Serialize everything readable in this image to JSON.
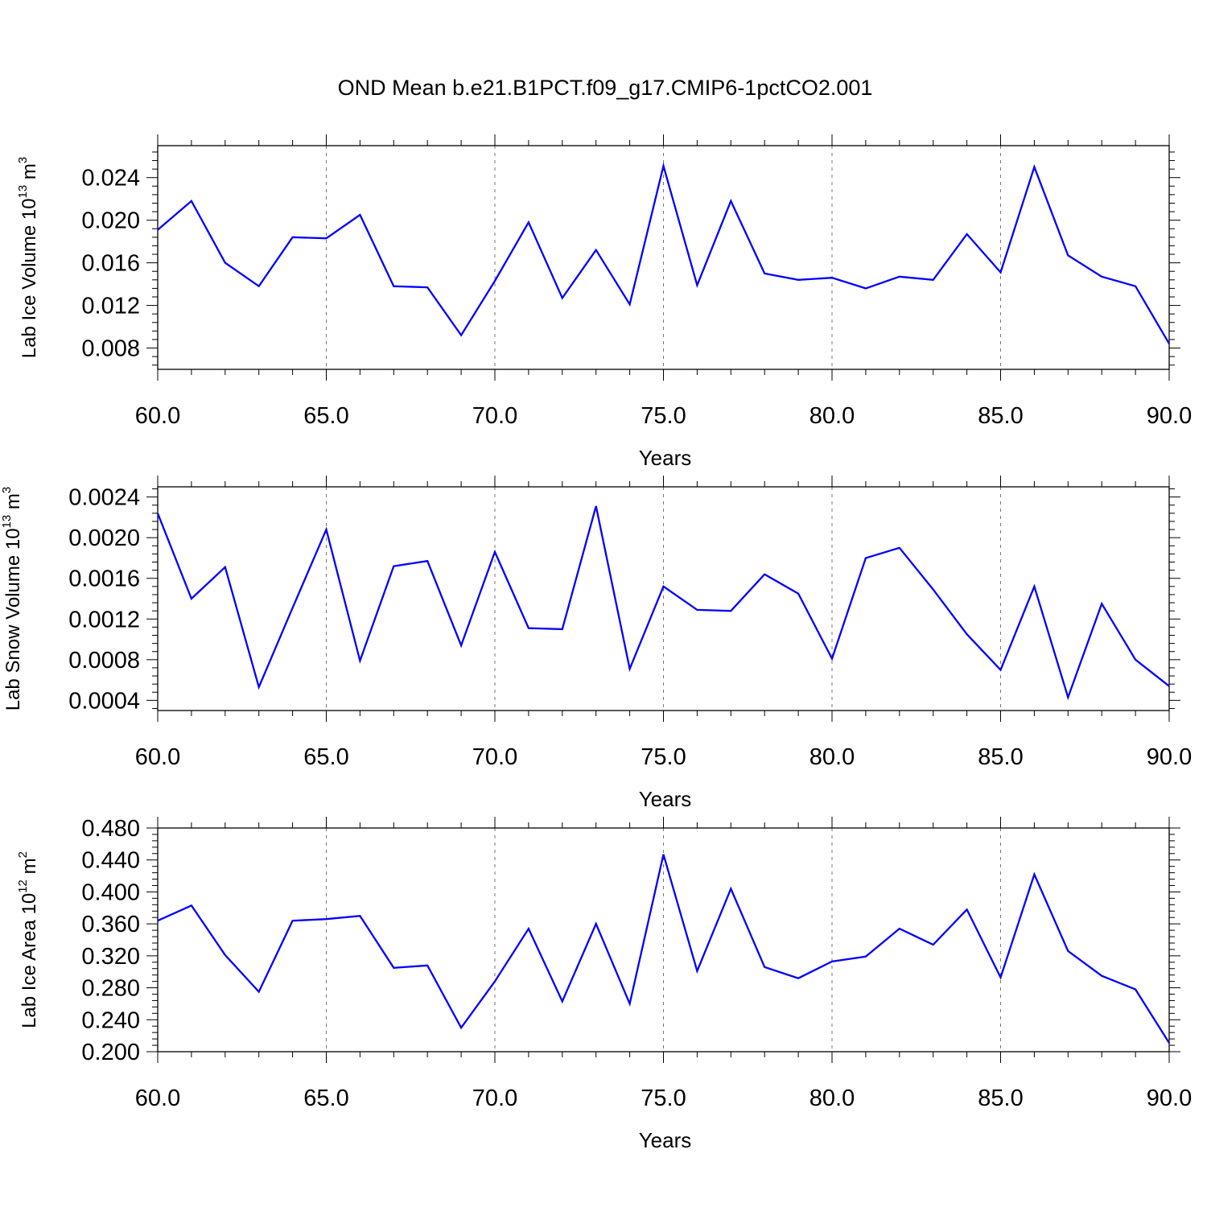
{
  "title": "OND Mean b.e21.B1PCT.f09_g17.CMIP6-1pctCO2.001",
  "colors": {
    "series": "#0000ff",
    "grid": "#777777",
    "axis": "#000000"
  },
  "chart_data": [
    {
      "type": "line",
      "xlabel": "Years",
      "ylabel": {
        "text": "Lab Ice Volume 10",
        "exponent": "13",
        "unit": "m",
        "unit_exponent": "3"
      },
      "xlim": [
        60,
        90
      ],
      "ylim": [
        0.006,
        0.027
      ],
      "x_ticks": [
        60,
        65,
        70,
        75,
        80,
        85,
        90
      ],
      "x_tick_labels": [
        "60.0",
        "65.0",
        "70.0",
        "75.0",
        "80.0",
        "85.0",
        "90.0"
      ],
      "y_ticks": [
        0.008,
        0.012,
        0.016,
        0.02,
        0.024
      ],
      "y_tick_labels": [
        "0.008",
        "0.012",
        "0.016",
        "0.020",
        "0.024"
      ],
      "grid_x": "dashed vertical at 65, 70, 75, 80, 85",
      "x": [
        60,
        61,
        62,
        63,
        64,
        65,
        66,
        67,
        68,
        69,
        70,
        71,
        72,
        73,
        74,
        75,
        76,
        77,
        78,
        79,
        80,
        81,
        82,
        83,
        84,
        85,
        86,
        87,
        88,
        89,
        90
      ],
      "values": [
        0.0191,
        0.0218,
        0.016,
        0.0138,
        0.0184,
        0.0183,
        0.0205,
        0.0138,
        0.0137,
        0.0092,
        0.0143,
        0.0198,
        0.0127,
        0.0172,
        0.0121,
        0.0251,
        0.0139,
        0.0218,
        0.015,
        0.0144,
        0.0146,
        0.0136,
        0.0147,
        0.0144,
        0.0187,
        0.0151,
        0.025,
        0.0167,
        0.0147,
        0.0138,
        0.0084
      ]
    },
    {
      "type": "line",
      "xlabel": "Years",
      "ylabel": {
        "text": "Lab Snow Volume 10",
        "exponent": "13",
        "unit": "m",
        "unit_exponent": "3"
      },
      "xlim": [
        60,
        90
      ],
      "ylim": [
        0.0003,
        0.0025
      ],
      "x_ticks": [
        60,
        65,
        70,
        75,
        80,
        85,
        90
      ],
      "x_tick_labels": [
        "60.0",
        "65.0",
        "70.0",
        "75.0",
        "80.0",
        "85.0",
        "90.0"
      ],
      "y_ticks": [
        0.0004,
        0.0008,
        0.0012,
        0.0016,
        0.002,
        0.0024
      ],
      "y_tick_labels": [
        "0.0004",
        "0.0008",
        "0.0012",
        "0.0016",
        "0.0020",
        "0.0024"
      ],
      "grid_x": "dashed vertical at 65, 70, 75, 80, 85",
      "x": [
        60,
        61,
        62,
        63,
        64,
        65,
        66,
        67,
        68,
        69,
        70,
        71,
        72,
        73,
        74,
        75,
        76,
        77,
        78,
        79,
        80,
        81,
        82,
        83,
        84,
        85,
        86,
        87,
        88,
        89,
        90
      ],
      "values": [
        0.00224,
        0.0014,
        0.00171,
        0.00053,
        0.00131,
        0.00208,
        0.00079,
        0.00172,
        0.00177,
        0.00094,
        0.00186,
        0.00111,
        0.0011,
        0.00231,
        0.00071,
        0.00152,
        0.00129,
        0.00128,
        0.00164,
        0.00145,
        0.00081,
        0.0018,
        0.0019,
        0.00149,
        0.00105,
        0.0007,
        0.00152,
        0.00043,
        0.00135,
        0.0008,
        0.00054
      ]
    },
    {
      "type": "line",
      "xlabel": "Years",
      "ylabel": {
        "text": "Lab Ice Area 10",
        "exponent": "12",
        "unit": "m",
        "unit_exponent": "2"
      },
      "xlim": [
        60,
        90
      ],
      "ylim": [
        0.2,
        0.48
      ],
      "x_ticks": [
        60,
        65,
        70,
        75,
        80,
        85,
        90
      ],
      "x_tick_labels": [
        "60.0",
        "65.0",
        "70.0",
        "75.0",
        "80.0",
        "85.0",
        "90.0"
      ],
      "y_ticks": [
        0.2,
        0.24,
        0.28,
        0.32,
        0.36,
        0.4,
        0.44,
        0.48
      ],
      "y_tick_labels": [
        "0.200",
        "0.240",
        "0.280",
        "0.320",
        "0.360",
        "0.400",
        "0.440",
        "0.480"
      ],
      "grid_x": "dashed vertical at 65, 70, 75, 80, 85",
      "x": [
        60,
        61,
        62,
        63,
        64,
        65,
        66,
        67,
        68,
        69,
        70,
        71,
        72,
        73,
        74,
        75,
        76,
        77,
        78,
        79,
        80,
        81,
        82,
        83,
        84,
        85,
        86,
        87,
        88,
        89,
        90
      ],
      "values": [
        0.364,
        0.383,
        0.321,
        0.275,
        0.364,
        0.366,
        0.37,
        0.305,
        0.308,
        0.23,
        0.288,
        0.354,
        0.263,
        0.36,
        0.26,
        0.447,
        0.301,
        0.404,
        0.306,
        0.292,
        0.313,
        0.319,
        0.354,
        0.334,
        0.378,
        0.293,
        0.422,
        0.326,
        0.295,
        0.278,
        0.211
      ]
    }
  ]
}
